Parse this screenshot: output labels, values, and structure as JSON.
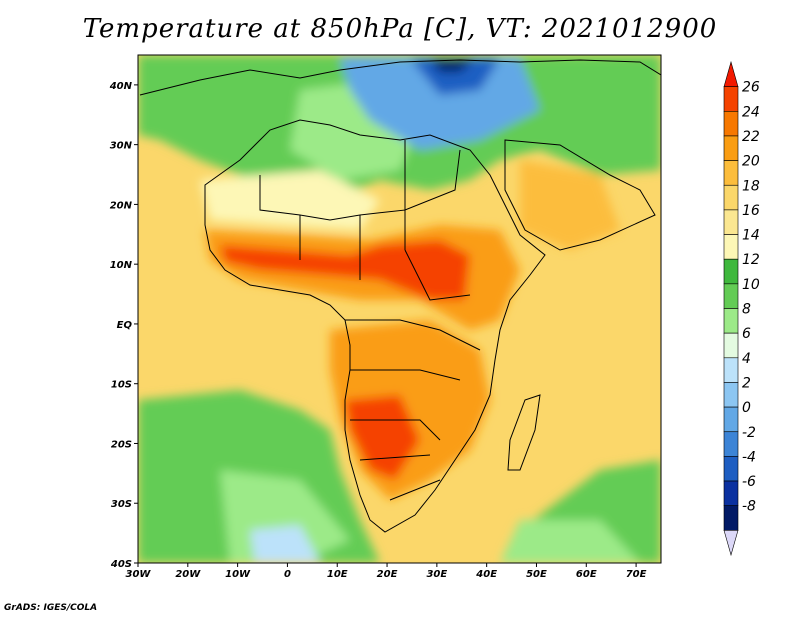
{
  "title": "Temperature at 850hPa [C], VT: 2021012900",
  "credit": "GrADS: IGES/COLA",
  "map": {
    "lon_range": [
      -30,
      75
    ],
    "lat_range": [
      -40,
      45
    ],
    "lon_ticks": [
      {
        "value": -30,
        "label": "30W"
      },
      {
        "value": -20,
        "label": "20W"
      },
      {
        "value": -10,
        "label": "10W"
      },
      {
        "value": 0,
        "label": "0"
      },
      {
        "value": 10,
        "label": "10E"
      },
      {
        "value": 20,
        "label": "20E"
      },
      {
        "value": 30,
        "label": "30E"
      },
      {
        "value": 40,
        "label": "40E"
      },
      {
        "value": 50,
        "label": "50E"
      },
      {
        "value": 60,
        "label": "60E"
      },
      {
        "value": 70,
        "label": "70E"
      }
    ],
    "lat_ticks": [
      {
        "value": 40,
        "label": "40N"
      },
      {
        "value": 30,
        "label": "30N"
      },
      {
        "value": 20,
        "label": "20N"
      },
      {
        "value": 10,
        "label": "10N"
      },
      {
        "value": 0,
        "label": "EQ"
      },
      {
        "value": -10,
        "label": "10S"
      },
      {
        "value": -20,
        "label": "20S"
      },
      {
        "value": -30,
        "label": "30S"
      },
      {
        "value": -40,
        "label": "40S"
      }
    ]
  },
  "colorbar": {
    "levels": [
      "26",
      "24",
      "22",
      "20",
      "18",
      "16",
      "14",
      "12",
      "10",
      "8",
      "6",
      "4",
      "2",
      "0",
      "-2",
      "-4",
      "-6",
      "-8"
    ],
    "colors": [
      "#f21900",
      "#f54300",
      "#f77800",
      "#fa9d12",
      "#fcbd3c",
      "#fbd76a",
      "#fbe791",
      "#fdf7b6",
      "#3fb83d",
      "#63cc55",
      "#9cea88",
      "#e4fbe1",
      "#bce2fa",
      "#8cc6f2",
      "#62a8e6",
      "#3c84d6",
      "#1e5ec2",
      "#0b31a0",
      "#021a66",
      "#dcd8f8"
    ]
  },
  "colors": {
    "ocean_warm": "#fbd76a",
    "ocean_cool": "#9cea88",
    "hot": "#f54300",
    "cold": "#3c84d6",
    "border": "#000000"
  }
}
